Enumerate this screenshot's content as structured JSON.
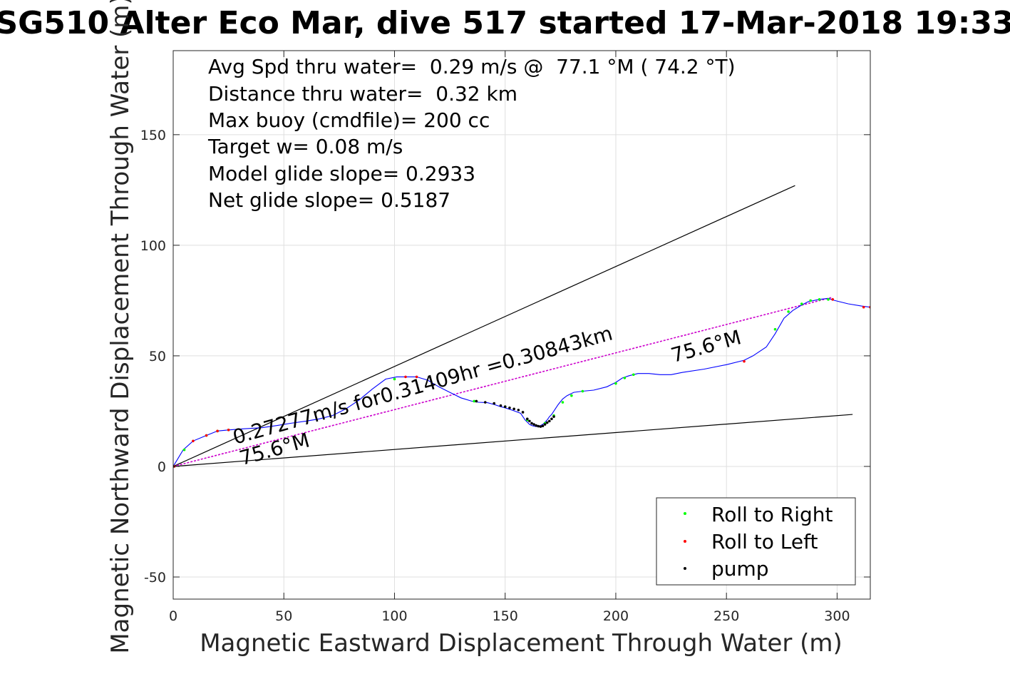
{
  "chart_data": {
    "type": "line",
    "title": "SG510 Alter Eco Mar, dive 517 started 17-Mar-2018 19:33",
    "xlabel": "Magnetic Eastward Displacement Through Water (m)",
    "ylabel": "Magnetic Northward Displacement Through Water (m)",
    "xlim": [
      0,
      315
    ],
    "ylim": [
      -60,
      188
    ],
    "xticks": [
      0,
      50,
      100,
      150,
      200,
      250,
      300
    ],
    "yticks": [
      -50,
      0,
      50,
      100,
      150
    ],
    "grid": true,
    "legend_position": "bottom-right",
    "stats": [
      "Avg Spd thru water=  0.29 m/s @  77.1 °M ( 74.2 °T)",
      "Distance thru water=  0.32 km",
      "Max buoy (cmdfile)= 200 cc",
      "Target w= 0.08 m/s",
      "Model glide slope= 0.2933",
      "Net glide slope= 0.5187"
    ],
    "annotations": [
      {
        "text": "0.27277m/s for0.31409hr =0.30843km",
        "x": 28,
        "y": 10,
        "angle_deg": -15.5
      },
      {
        "text": "75.6°M",
        "x": 31,
        "y": 0.5,
        "angle_deg": -15.5
      },
      {
        "text": "75.6°M",
        "x": 226,
        "y": 47,
        "angle_deg": -15.5
      }
    ],
    "reference_lines": [
      {
        "name": "glide-upper",
        "color": "#000000",
        "x": [
          0,
          281
        ],
        "y": [
          0,
          127
        ]
      },
      {
        "name": "glide-lower",
        "color": "#000000",
        "x": [
          0,
          307
        ],
        "y": [
          0,
          23.5
        ]
      },
      {
        "name": "net-heading",
        "color": "#cc00cc",
        "dashed": true,
        "x": [
          0,
          298
        ],
        "y": [
          0,
          76.5
        ]
      }
    ],
    "series": [
      {
        "name": "track",
        "color": "#0000ff",
        "x": [
          0,
          1.5,
          4.5,
          9,
          15,
          20,
          25,
          32,
          40,
          47,
          53,
          60,
          66,
          72,
          78,
          84,
          90,
          96,
          101,
          105,
          110,
          115,
          120,
          125,
          130,
          135,
          138,
          142,
          145,
          148,
          150,
          153,
          155,
          157,
          158,
          159,
          160,
          161,
          162,
          163,
          164,
          165,
          166,
          167,
          168,
          169,
          170,
          171,
          172,
          174,
          176,
          178,
          181,
          185,
          190,
          196,
          200,
          203,
          206,
          210,
          215,
          220,
          225,
          230,
          240,
          250,
          258,
          262,
          268,
          272,
          276,
          280,
          284,
          287,
          292,
          296,
          299,
          305,
          311,
          315
        ],
        "y": [
          0,
          2.5,
          7.5,
          11.5,
          14,
          16,
          16.5,
          17,
          17.5,
          18.5,
          19.5,
          20.5,
          21.5,
          23,
          26,
          30,
          35,
          39.5,
          40.5,
          40.5,
          40.5,
          39,
          36,
          33.5,
          31,
          29.5,
          29,
          28.8,
          28,
          27,
          26.5,
          25.5,
          24.8,
          24,
          22.5,
          21,
          20,
          19,
          18.5,
          18.2,
          18,
          18.1,
          18.5,
          19,
          20,
          21,
          22.5,
          23.5,
          25,
          28,
          30.5,
          32,
          33.5,
          34,
          34.5,
          36,
          38,
          40,
          41,
          42,
          42,
          41.5,
          41.5,
          42.5,
          44,
          46,
          48,
          50,
          54,
          60,
          67,
          70.5,
          73,
          74.5,
          75.5,
          76,
          75,
          73.5,
          72.5,
          72
        ]
      },
      {
        "name": "Roll to Right",
        "color": "#00ff00",
        "marker": "point",
        "x": [
          5,
          15,
          20,
          25,
          100,
          136,
          150,
          160,
          168,
          172,
          176,
          180,
          185,
          200,
          204,
          208,
          272,
          278,
          284,
          288,
          292,
          296
        ],
        "y": [
          7.5,
          14,
          16,
          16.5,
          39.5,
          29.5,
          27,
          21,
          19.5,
          23,
          29,
          32,
          34,
          37.5,
          40,
          41.5,
          62,
          70,
          73.5,
          75,
          75.5,
          75.5
        ]
      },
      {
        "name": "Roll to Left",
        "color": "#ff0000",
        "marker": "point",
        "x": [
          0.5,
          9,
          15,
          20,
          25,
          105,
          110,
          258,
          298,
          312,
          315
        ],
        "y": [
          0,
          11.5,
          14,
          16,
          16.5,
          40.5,
          40.5,
          47.5,
          75.5,
          72,
          72
        ]
      },
      {
        "name": "pump",
        "color": "#000000",
        "marker": "point",
        "x": [
          0,
          137,
          141,
          145,
          148,
          150,
          152,
          154,
          156,
          158,
          160,
          161,
          162,
          163,
          164,
          165,
          166,
          167,
          168,
          169,
          170,
          171,
          172
        ],
        "y": [
          0,
          29.5,
          29,
          28.5,
          27.5,
          27,
          26.5,
          26,
          25.5,
          24.5,
          21.5,
          20.5,
          19.5,
          19,
          18.5,
          18.2,
          18,
          18.3,
          19,
          19.8,
          20.5,
          21.5,
          22.5
        ]
      }
    ]
  }
}
